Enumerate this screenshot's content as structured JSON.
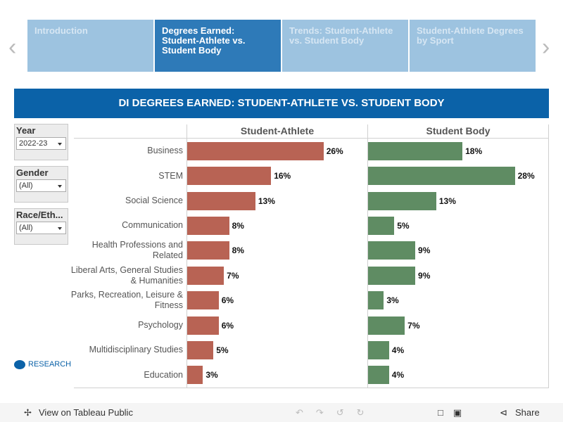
{
  "nav": {
    "tabs": [
      "Introduction",
      "Degrees Earned: Student-Athlete vs. Student Body",
      "Trends: Student-Athlete vs. Student Body",
      "Student-Athlete Degrees by Sport"
    ]
  },
  "filters": [
    {
      "label": "Year",
      "value": "2022-23"
    },
    {
      "label": "Gender",
      "value": "(All)"
    },
    {
      "label": "Race/Eth...",
      "value": "(All)"
    }
  ],
  "logo": "RESEARCH",
  "chart_data": {
    "type": "bar",
    "orientation": "horizontal",
    "title": "DI DEGREES EARNED: STUDENT-ATHLETE VS. STUDENT BODY",
    "categories": [
      "Business",
      "STEM",
      "Social Science",
      "Communication",
      "Health Professions and Related",
      "Liberal Arts, General Studies & Humanities",
      "Parks, Recreation, Leisure & Fitness",
      "Psychology",
      "Multidisciplinary Studies",
      "Education"
    ],
    "series": [
      {
        "name": "Student-Athlete",
        "color": "#b86354",
        "values": [
          26,
          16,
          13,
          8,
          8,
          7,
          6,
          6,
          5,
          3
        ],
        "value_labels": [
          "26%",
          "16%",
          "13%",
          "8%",
          "8%",
          "7%",
          "6%",
          "6%",
          "5%",
          "3%"
        ]
      },
      {
        "name": "Student Body",
        "color": "#5f8c63",
        "values": [
          18,
          28,
          13,
          5,
          9,
          9,
          3,
          7,
          4,
          4
        ],
        "value_labels": [
          "18%",
          "28%",
          "13%",
          "5%",
          "9%",
          "9%",
          "3%",
          "7%",
          "4%",
          "4%"
        ]
      }
    ]
  },
  "footer": {
    "view": "View on Tableau Public",
    "share": "Share"
  }
}
